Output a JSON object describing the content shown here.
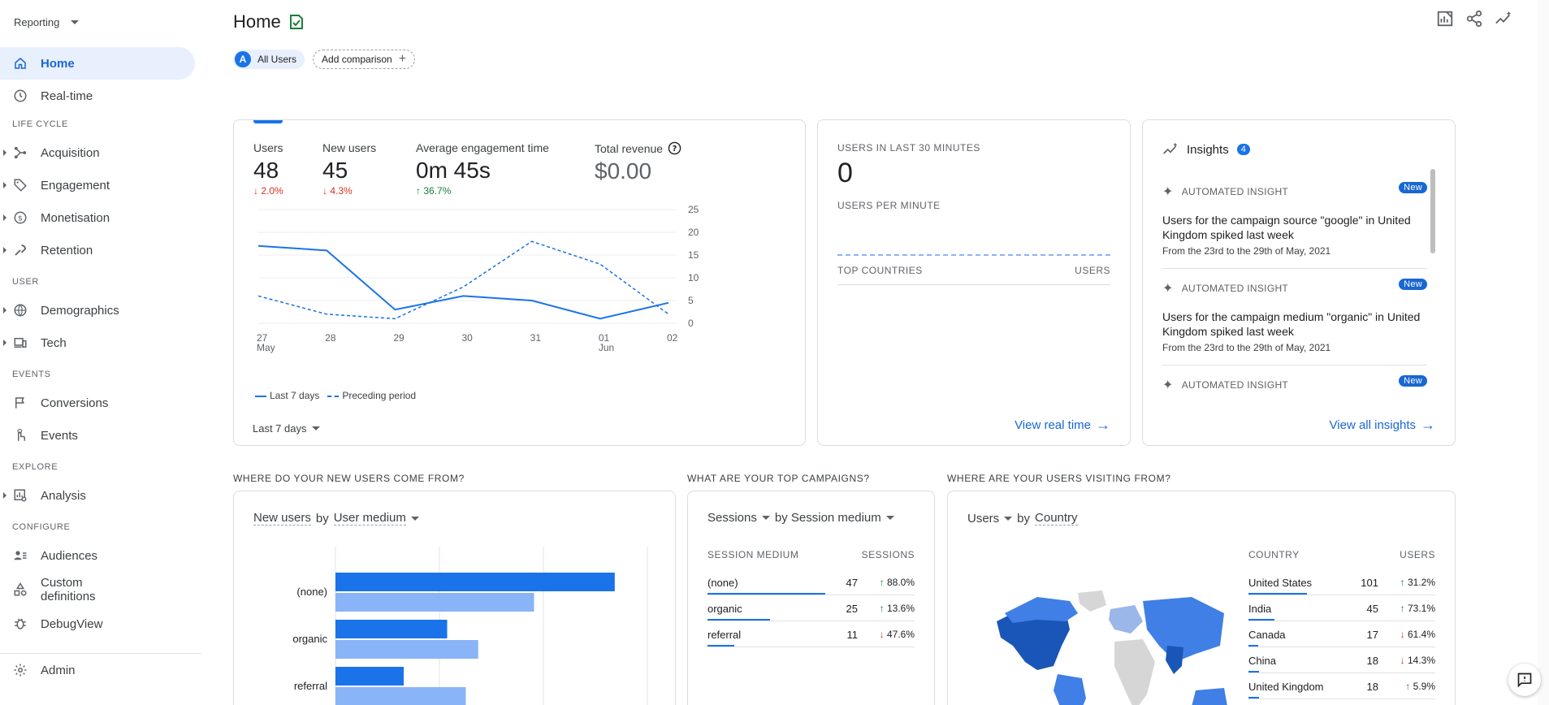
{
  "sidebar": {
    "reporting_label": "Reporting",
    "items": [
      {
        "label": "Home",
        "icon": "home-icon",
        "active": true
      },
      {
        "label": "Real-time",
        "icon": "clock-icon"
      }
    ],
    "sections": [
      {
        "label": "LIFE CYCLE",
        "items": [
          "Acquisition",
          "Engagement",
          "Monetisation",
          "Retention"
        ]
      },
      {
        "label": "USER",
        "items": [
          "Demographics",
          "Tech"
        ]
      },
      {
        "label": "EVENTS",
        "items": [
          "Conversions",
          "Events"
        ]
      },
      {
        "label": "EXPLORE",
        "items": [
          "Analysis"
        ]
      },
      {
        "label": "CONFIGURE",
        "items": [
          "Audiences",
          "Custom definitions",
          "DebugView"
        ]
      }
    ],
    "admin": "Admin"
  },
  "header": {
    "title": "Home",
    "chip_all_users_badge": "A",
    "chip_all_users": "All Users",
    "chip_add_comparison": "Add comparison"
  },
  "overview": {
    "metrics": [
      {
        "label": "Users",
        "value": "48",
        "change": "2.0%",
        "dir": "down"
      },
      {
        "label": "New users",
        "value": "45",
        "change": "4.3%",
        "dir": "down"
      },
      {
        "label": "Average engagement time",
        "value": "0m 45s",
        "change": "36.7%",
        "dir": "up"
      },
      {
        "label": "Total revenue",
        "value": "$0.00"
      }
    ],
    "legend_current": "Last 7 days",
    "legend_previous": "Preceding period",
    "date_range": "Last 7 days"
  },
  "chart_data": {
    "type": "line",
    "categories": [
      "27",
      "28",
      "29",
      "30",
      "31",
      "01",
      "02"
    ],
    "category_sublabels": [
      "May",
      "",
      "",
      "",
      "",
      "Jun",
      ""
    ],
    "series": [
      {
        "name": "Last 7 days",
        "values": [
          17,
          16,
          3,
          6,
          5,
          1,
          4.5
        ]
      },
      {
        "name": "Preceding period",
        "values": [
          6,
          2,
          1,
          8,
          18,
          13,
          2
        ]
      }
    ],
    "yticks": [
      0,
      5,
      10,
      15,
      20,
      25
    ],
    "ylim": [
      0,
      25
    ],
    "grid": true,
    "accent": "#1a73e8"
  },
  "realtime": {
    "title": "USERS IN LAST 30 MINUTES",
    "value": "0",
    "per_minute": "USERS PER MINUTE",
    "col_countries": "TOP COUNTRIES",
    "col_users": "USERS",
    "view_link": "View real time"
  },
  "insights": {
    "title": "Insights",
    "count": "4",
    "items": [
      {
        "head": "AUTOMATED INSIGHT",
        "badge": "New",
        "text": "Users for the campaign source \"google\" in United Kingdom spiked last week",
        "sub": "From the 23rd to the 29th of May, 2021"
      },
      {
        "head": "AUTOMATED INSIGHT",
        "badge": "New",
        "text": "Users for the campaign medium \"organic\" in United Kingdom spiked last week",
        "sub": "From the 23rd to the 29th of May, 2021"
      },
      {
        "head": "AUTOMATED INSIGHT",
        "badge": "New"
      }
    ],
    "view_link": "View all insights"
  },
  "new_users": {
    "section": "WHERE DO YOUR NEW USERS COME FROM?",
    "metric": "New users",
    "by": "by",
    "dimension": "User medium",
    "bars": [
      {
        "label": "(none)",
        "current": 45,
        "previous": 32
      },
      {
        "label": "organic",
        "current": 18,
        "previous": 23
      },
      {
        "label": "referral",
        "current": 11,
        "previous": 21
      }
    ]
  },
  "campaigns": {
    "section": "WHAT ARE YOUR TOP CAMPAIGNS?",
    "metric": "Sessions",
    "by": "by Session medium",
    "col1": "SESSION MEDIUM",
    "col2": "SESSIONS",
    "rows": [
      {
        "name": "(none)",
        "value": "47",
        "change": "88.0%",
        "dir": "up",
        "share": 1.0
      },
      {
        "name": "organic",
        "value": "25",
        "change": "13.6%",
        "dir": "up",
        "share": 0.53
      },
      {
        "name": "referral",
        "value": "11",
        "change": "47.6%",
        "dir": "down",
        "share": 0.23
      }
    ]
  },
  "countries": {
    "section": "WHERE ARE YOUR USERS VISITING FROM?",
    "metric": "Users",
    "by": "by",
    "dimension": "Country",
    "col1": "COUNTRY",
    "col2": "USERS",
    "rows": [
      {
        "name": "United States",
        "value": "101",
        "change": "31.2%",
        "dir": "up",
        "share": 1.0
      },
      {
        "name": "India",
        "value": "45",
        "change": "73.1%",
        "dir": "up",
        "share": 0.45
      },
      {
        "name": "Canada",
        "value": "17",
        "change": "61.4%",
        "dir": "down",
        "share": 0.17
      },
      {
        "name": "China",
        "value": "18",
        "change": "14.3%",
        "dir": "down",
        "share": 0.18
      },
      {
        "name": "United Kingdom",
        "value": "18",
        "change": "5.9%",
        "dir": "up",
        "share": 0.18
      }
    ]
  }
}
